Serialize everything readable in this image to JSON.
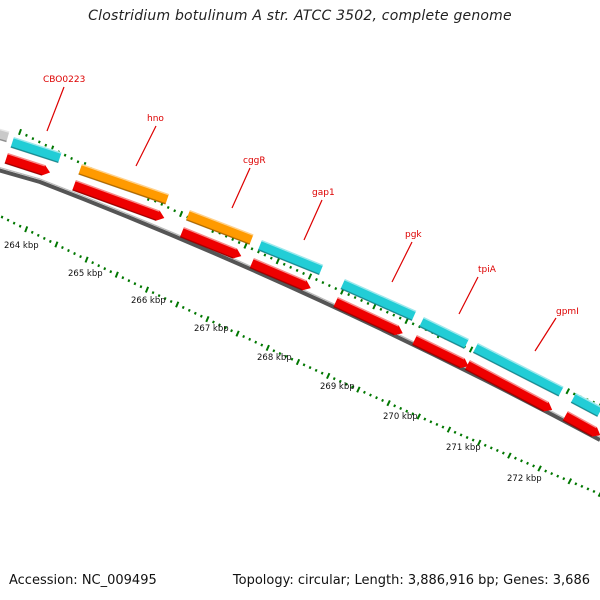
{
  "title": "Clostridium botulinum A str. ATCC 3502, complete genome",
  "footer": {
    "accession": "Accession: NC_009495",
    "topology": "Topology: circular; Length: 3,886,916 bp; Genes: 3,686"
  },
  "colors": {
    "cds_forward_alt": "#22cdd6",
    "cds_forward_rrna": "#ff9a00",
    "gene_reverse": "#ee0000",
    "backbone": "#777777",
    "tick": "#007700",
    "gene_label": "#dd0000",
    "scale_label": "#111111"
  },
  "scale_labels": [
    "264 kbp",
    "265 kbp",
    "266 kbp",
    "267 kbp",
    "268 kbp",
    "269 kbp",
    "270 kbp",
    "271 kbp",
    "272 kbp"
  ],
  "gene_labels": [
    "CBO0223",
    "hno",
    "cggR",
    "gap1",
    "pgk",
    "tpiA",
    "gpmI"
  ]
}
